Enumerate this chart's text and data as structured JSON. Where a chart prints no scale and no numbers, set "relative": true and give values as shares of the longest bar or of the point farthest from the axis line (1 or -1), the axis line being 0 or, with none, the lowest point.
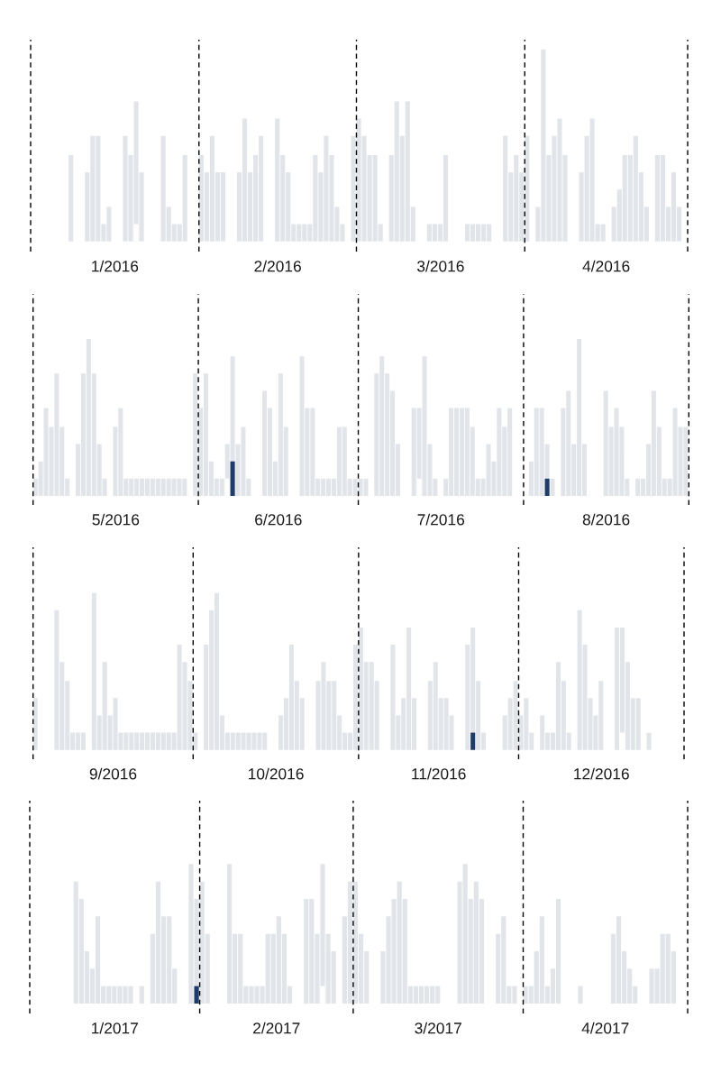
{
  "chart_data": [
    {
      "type": "bar",
      "relative": true,
      "xlim": [
        "2016-01-01",
        "2016-05-01"
      ],
      "xticks": [
        {
          "value": "2016-01-16T12:00",
          "label": "1/2016"
        },
        {
          "value": "2016-02-15T12:00",
          "label": "2/2016"
        },
        {
          "value": "2016-03-16T12:00",
          "label": "3/2016"
        },
        {
          "value": "2016-04-16",
          "label": "4/2016"
        }
      ],
      "ref_lines": [
        {
          "axis": "x",
          "value": "2016-01-01",
          "color": "#000000",
          "line_style": "dashed"
        },
        {
          "axis": "x",
          "value": "2016-02-01",
          "color": "#000000",
          "line_style": "dashed"
        },
        {
          "axis": "x",
          "value": "2016-03-01",
          "color": "#000000",
          "line_style": "dashed"
        },
        {
          "axis": "x",
          "value": "2016-04-01",
          "color": "#000000",
          "line_style": "dashed"
        },
        {
          "axis": "x",
          "value": "2016-05-01",
          "color": "#000000",
          "line_style": "dashed"
        }
      ],
      "series": [
        {
          "color": "#e1e4e9",
          "x": [
            "2016-01-08",
            "2016-01-11",
            "2016-01-12",
            "2016-01-13",
            "2016-01-14",
            "2016-01-15",
            "2016-01-18",
            "2016-01-19",
            "2016-01-20",
            "2016-01-21",
            "2016-01-25",
            "2016-01-26",
            "2016-01-27",
            "2016-01-28",
            "2016-01-29",
            "2016-02-01",
            "2016-02-02",
            "2016-02-03",
            "2016-02-04",
            "2016-02-05",
            "2016-02-08",
            "2016-02-09",
            "2016-02-10",
            "2016-02-11",
            "2016-02-12",
            "2016-02-15",
            "2016-02-16",
            "2016-02-17",
            "2016-02-18",
            "2016-02-19",
            "2016-02-20",
            "2016-02-21",
            "2016-02-22",
            "2016-02-23",
            "2016-02-24",
            "2016-02-25",
            "2016-02-26",
            "2016-02-27",
            "2016-02-29",
            "2016-03-01",
            "2016-03-02",
            "2016-03-03",
            "2016-03-04",
            "2016-03-05",
            "2016-03-07",
            "2016-03-08",
            "2016-03-09",
            "2016-03-10",
            "2016-03-11",
            "2016-03-14",
            "2016-03-15",
            "2016-03-16",
            "2016-03-17",
            "2016-03-21",
            "2016-03-22",
            "2016-03-23",
            "2016-03-24",
            "2016-03-25",
            "2016-03-28",
            "2016-03-29",
            "2016-03-30",
            "2016-03-31",
            "2016-04-01",
            "2016-04-03",
            "2016-04-04",
            "2016-04-05",
            "2016-04-06",
            "2016-04-07",
            "2016-04-08",
            "2016-04-11",
            "2016-04-12",
            "2016-04-13",
            "2016-04-14",
            "2016-04-15",
            "2016-04-17",
            "2016-04-18",
            "2016-04-19",
            "2016-04-20",
            "2016-04-21",
            "2016-04-22",
            "2016-04-23",
            "2016-04-25",
            "2016-04-26",
            "2016-04-27",
            "2016-04-28",
            "2016-04-29"
          ],
          "values": [
            0.45,
            0.36,
            0.55,
            0.55,
            0.09,
            0.18,
            0.55,
            0.45,
            0.73,
            0.36,
            0.55,
            0.18,
            0.09,
            0.09,
            0.45,
            0.45,
            0.36,
            0.55,
            0.36,
            0.36,
            0.36,
            0.64,
            0.36,
            0.45,
            0.55,
            0.64,
            0.45,
            0.36,
            0.09,
            0.09,
            0.09,
            0.09,
            0.45,
            0.36,
            0.55,
            0.45,
            0.18,
            0.09,
            0.55,
            0.64,
            0.55,
            0.45,
            0.45,
            0.09,
            0.45,
            0.73,
            0.55,
            0.73,
            0.18,
            0.09,
            0.09,
            0.09,
            0.45,
            0.09,
            0.09,
            0.09,
            0.09,
            0.09,
            0.55,
            0.36,
            0.45,
            0.36,
            0.55,
            0.18,
            1,
            0.45,
            0.55,
            0.64,
            0.45,
            0.36,
            0.55,
            0.64,
            0.09,
            0.09,
            0.18,
            0.27,
            0.45,
            0.45,
            0.55,
            0.36,
            0.18,
            0.45,
            0.45,
            0.18,
            0.36,
            0.18
          ]
        },
        {
          "color": "#ffffff",
          "x": [
            "2016-01-20"
          ],
          "values": [
            0.09
          ]
        }
      ]
    },
    {
      "type": "bar",
      "relative": true,
      "xlim": [
        "2016-05-01",
        "2016-09-01"
      ],
      "xticks": [
        {
          "value": "2016-05-16T12:00",
          "label": "5/2016"
        },
        {
          "value": "2016-06-16",
          "label": "6/2016"
        },
        {
          "value": "2016-07-16T12:00",
          "label": "7/2016"
        },
        {
          "value": "2016-08-16T12:00",
          "label": "8/2016"
        }
      ],
      "ref_lines": [
        {
          "axis": "x",
          "value": "2016-05-01",
          "color": "#000000",
          "line_style": "dashed"
        },
        {
          "axis": "x",
          "value": "2016-06-01",
          "color": "#000000",
          "line_style": "dashed"
        },
        {
          "axis": "x",
          "value": "2016-07-01",
          "color": "#000000",
          "line_style": "dashed"
        },
        {
          "axis": "x",
          "value": "2016-08-01",
          "color": "#000000",
          "line_style": "dashed"
        },
        {
          "axis": "x",
          "value": "2016-09-01",
          "color": "#000000",
          "line_style": "dashed"
        }
      ],
      "series": [
        {
          "color": "#e1e4e9",
          "x": [
            "2016-05-01",
            "2016-05-02",
            "2016-05-03",
            "2016-05-04",
            "2016-05-05",
            "2016-05-06",
            "2016-05-07",
            "2016-05-09",
            "2016-05-10",
            "2016-05-11",
            "2016-05-12",
            "2016-05-13",
            "2016-05-14",
            "2016-05-16",
            "2016-05-17",
            "2016-05-18",
            "2016-05-19",
            "2016-05-20",
            "2016-05-21",
            "2016-05-22",
            "2016-05-23",
            "2016-05-24",
            "2016-05-25",
            "2016-05-26",
            "2016-05-27",
            "2016-05-28",
            "2016-05-29",
            "2016-05-31",
            "2016-06-01",
            "2016-06-02",
            "2016-06-03",
            "2016-06-04",
            "2016-06-05",
            "2016-06-06",
            "2016-06-07",
            "2016-06-08",
            "2016-06-09",
            "2016-06-10",
            "2016-06-13",
            "2016-06-14",
            "2016-06-15",
            "2016-06-16",
            "2016-06-17",
            "2016-06-20",
            "2016-06-21",
            "2016-06-22",
            "2016-06-23",
            "2016-06-24",
            "2016-06-25",
            "2016-06-26",
            "2016-06-27",
            "2016-06-28",
            "2016-06-29",
            "2016-06-30",
            "2016-07-01",
            "2016-07-02",
            "2016-07-04",
            "2016-07-05",
            "2016-07-06",
            "2016-07-07",
            "2016-07-08",
            "2016-07-11",
            "2016-07-12",
            "2016-07-13",
            "2016-07-14",
            "2016-07-15",
            "2016-07-17",
            "2016-07-18",
            "2016-07-19",
            "2016-07-20",
            "2016-07-21",
            "2016-07-22",
            "2016-07-23",
            "2016-07-24",
            "2016-07-25",
            "2016-07-26",
            "2016-07-27",
            "2016-07-28",
            "2016-07-29",
            "2016-08-02",
            "2016-08-03",
            "2016-08-04",
            "2016-08-05",
            "2016-08-06",
            "2016-08-08",
            "2016-08-09",
            "2016-08-10",
            "2016-08-11",
            "2016-08-12",
            "2016-08-16",
            "2016-08-17",
            "2016-08-18",
            "2016-08-19",
            "2016-08-20",
            "2016-08-22",
            "2016-08-23",
            "2016-08-24",
            "2016-08-25",
            "2016-08-26",
            "2016-08-27",
            "2016-08-28",
            "2016-08-29",
            "2016-08-30",
            "2016-08-31"
          ],
          "values": [
            0.11,
            0.22,
            0.56,
            0.44,
            0.78,
            0.44,
            0.11,
            0.33,
            0.78,
            1,
            0.78,
            0.33,
            0.11,
            0.44,
            0.56,
            0.11,
            0.11,
            0.11,
            0.11,
            0.11,
            0.11,
            0.11,
            0.11,
            0.11,
            0.11,
            0.11,
            0.11,
            0.78,
            0.56,
            0.78,
            0.22,
            0.11,
            0.11,
            0.33,
            0.89,
            0.33,
            0.44,
            0.11,
            0.67,
            0.56,
            0.22,
            0.78,
            0.44,
            0.89,
            0.56,
            0.56,
            0.11,
            0.11,
            0.11,
            0.11,
            0.44,
            0.44,
            0.11,
            0.11,
            0.11,
            0.11,
            0.78,
            0.89,
            0.78,
            0.67,
            0.33,
            0.56,
            0.56,
            0.89,
            0.33,
            0.11,
            0.11,
            0.56,
            0.56,
            0.56,
            0.56,
            0.44,
            0.11,
            0.11,
            0.33,
            0.22,
            0.56,
            0.44,
            0.56,
            0.22,
            0.56,
            0.56,
            0.33,
            0.11,
            0.56,
            0.67,
            0.33,
            1,
            0.33,
            0.67,
            0.44,
            0.56,
            0.44,
            0.11,
            0.11,
            0.11,
            0.33,
            0.67,
            0.44,
            0.11,
            0.11,
            0.56,
            0.44,
            0.44
          ]
        },
        {
          "color": "#1d3c68",
          "x": [
            "2016-06-07",
            "2016-08-05"
          ],
          "values": [
            0.22,
            0.11
          ]
        },
        {
          "color": "#ffffff",
          "x": [
            "2016-06-06",
            "2016-07-12"
          ],
          "values": [
            0.11,
            0.11
          ]
        }
      ]
    },
    {
      "type": "bar",
      "relative": true,
      "xlim": [
        "2016-09-01",
        "2017-01-01"
      ],
      "xticks": [
        {
          "value": "2016-09-16",
          "label": "9/2016"
        },
        {
          "value": "2016-10-16T12:00",
          "label": "10/2016"
        },
        {
          "value": "2016-11-16",
          "label": "11/2016"
        },
        {
          "value": "2016-12-16T12:00",
          "label": "12/2016"
        }
      ],
      "ref_lines": [
        {
          "axis": "x",
          "value": "2016-09-01",
          "color": "#000000",
          "line_style": "dashed"
        },
        {
          "axis": "x",
          "value": "2016-10-01",
          "color": "#000000",
          "line_style": "dashed"
        },
        {
          "axis": "x",
          "value": "2016-11-01",
          "color": "#000000",
          "line_style": "dashed"
        },
        {
          "axis": "x",
          "value": "2016-12-01",
          "color": "#000000",
          "line_style": "dashed"
        },
        {
          "axis": "x",
          "value": "2017-01-01",
          "color": "#000000",
          "line_style": "dashed"
        }
      ],
      "series": [
        {
          "color": "#e1e4e9",
          "x": [
            "2016-09-01",
            "2016-09-05",
            "2016-09-06",
            "2016-09-07",
            "2016-09-08",
            "2016-09-09",
            "2016-09-10",
            "2016-09-12",
            "2016-09-13",
            "2016-09-14",
            "2016-09-15",
            "2016-09-16",
            "2016-09-17",
            "2016-09-18",
            "2016-09-19",
            "2016-09-20",
            "2016-09-21",
            "2016-09-22",
            "2016-09-23",
            "2016-09-24",
            "2016-09-25",
            "2016-09-26",
            "2016-09-27",
            "2016-09-28",
            "2016-09-29",
            "2016-09-30",
            "2016-10-01",
            "2016-10-03",
            "2016-10-04",
            "2016-10-05",
            "2016-10-06",
            "2016-10-07",
            "2016-10-08",
            "2016-10-09",
            "2016-10-10",
            "2016-10-11",
            "2016-10-12",
            "2016-10-13",
            "2016-10-14",
            "2016-10-17",
            "2016-10-18",
            "2016-10-19",
            "2016-10-20",
            "2016-10-21",
            "2016-10-24",
            "2016-10-25",
            "2016-10-26",
            "2016-10-27",
            "2016-10-28",
            "2016-10-29",
            "2016-10-30",
            "2016-10-31",
            "2016-11-01",
            "2016-11-02",
            "2016-11-03",
            "2016-11-04",
            "2016-11-07",
            "2016-11-08",
            "2016-11-09",
            "2016-11-10",
            "2016-11-11",
            "2016-11-14",
            "2016-11-15",
            "2016-11-16",
            "2016-11-17",
            "2016-11-18",
            "2016-11-21",
            "2016-11-22",
            "2016-11-23",
            "2016-11-24",
            "2016-11-28",
            "2016-11-29",
            "2016-11-30",
            "2016-12-01",
            "2016-12-02",
            "2016-12-03",
            "2016-12-05",
            "2016-12-06",
            "2016-12-07",
            "2016-12-08",
            "2016-12-09",
            "2016-12-10",
            "2016-12-12",
            "2016-12-13",
            "2016-12-14",
            "2016-12-15",
            "2016-12-16",
            "2016-12-19",
            "2016-12-20",
            "2016-12-21",
            "2016-12-22",
            "2016-12-23",
            "2016-12-25"
          ],
          "values": [
            0.33,
            0.89,
            0.56,
            0.44,
            0.11,
            0.11,
            0.11,
            1,
            0.22,
            0.56,
            0.22,
            0.33,
            0.11,
            0.11,
            0.11,
            0.11,
            0.11,
            0.11,
            0.11,
            0.11,
            0.11,
            0.11,
            0.11,
            0.67,
            0.56,
            0.44,
            0.11,
            0.67,
            0.89,
            1,
            0.22,
            0.11,
            0.11,
            0.11,
            0.11,
            0.11,
            0.11,
            0.11,
            0.11,
            0.22,
            0.33,
            0.67,
            0.44,
            0.33,
            0.44,
            0.56,
            0.44,
            0.44,
            0.22,
            0.11,
            0.11,
            0.67,
            0.78,
            0.56,
            0.56,
            0.44,
            0.67,
            0.22,
            0.33,
            0.78,
            0.33,
            0.44,
            0.56,
            0.33,
            0.33,
            0.22,
            0.67,
            0.78,
            0.44,
            0.11,
            0.22,
            0.33,
            0.44,
            0.22,
            0.33,
            0.11,
            0.22,
            0.11,
            0.11,
            0.56,
            0.44,
            0.11,
            0.89,
            0.67,
            0.33,
            0.22,
            0.44,
            0.78,
            0.78,
            0.56,
            0.33,
            0.33,
            0.11
          ]
        },
        {
          "color": "#1d3c68",
          "x": [
            "2016-11-22"
          ],
          "values": [
            0.11
          ]
        },
        {
          "color": "#ffffff",
          "x": [
            "2016-12-20"
          ],
          "values": [
            0.11
          ]
        }
      ]
    },
    {
      "type": "bar",
      "relative": true,
      "xlim": [
        "2017-01-01",
        "2017-05-01"
      ],
      "xticks": [
        {
          "value": "2017-01-16T12:00",
          "label": "1/2017"
        },
        {
          "value": "2017-02-15",
          "label": "2/2017"
        },
        {
          "value": "2017-03-16T12:00",
          "label": "3/2017"
        },
        {
          "value": "2017-04-16",
          "label": "4/2017"
        }
      ],
      "ref_lines": [
        {
          "axis": "x",
          "value": "2017-01-01",
          "color": "#000000",
          "line_style": "dashed"
        },
        {
          "axis": "x",
          "value": "2017-02-01",
          "color": "#000000",
          "line_style": "dashed"
        },
        {
          "axis": "x",
          "value": "2017-03-01",
          "color": "#000000",
          "line_style": "dashed"
        },
        {
          "axis": "x",
          "value": "2017-04-01",
          "color": "#000000",
          "line_style": "dashed"
        },
        {
          "axis": "x",
          "value": "2017-05-01",
          "color": "#000000",
          "line_style": "dashed"
        }
      ],
      "series": [
        {
          "color": "#e1e4e9",
          "x": [
            "2017-01-09",
            "2017-01-10",
            "2017-01-11",
            "2017-01-12",
            "2017-01-13",
            "2017-01-14",
            "2017-01-15",
            "2017-01-16",
            "2017-01-17",
            "2017-01-18",
            "2017-01-19",
            "2017-01-21",
            "2017-01-23",
            "2017-01-24",
            "2017-01-25",
            "2017-01-26",
            "2017-01-27",
            "2017-01-30",
            "2017-01-31",
            "2017-02-01",
            "2017-02-02",
            "2017-02-06",
            "2017-02-07",
            "2017-02-08",
            "2017-02-09",
            "2017-02-10",
            "2017-02-11",
            "2017-02-12",
            "2017-02-13",
            "2017-02-14",
            "2017-02-15",
            "2017-02-16",
            "2017-02-17",
            "2017-02-20",
            "2017-02-21",
            "2017-02-22",
            "2017-02-23",
            "2017-02-24",
            "2017-02-25",
            "2017-02-27",
            "2017-02-28",
            "2017-03-01",
            "2017-03-02",
            "2017-03-03",
            "2017-03-06",
            "2017-03-07",
            "2017-03-08",
            "2017-03-09",
            "2017-03-10",
            "2017-03-11",
            "2017-03-12",
            "2017-03-13",
            "2017-03-14",
            "2017-03-15",
            "2017-03-16",
            "2017-03-20",
            "2017-03-21",
            "2017-03-22",
            "2017-03-23",
            "2017-03-24",
            "2017-03-27",
            "2017-03-28",
            "2017-03-29",
            "2017-03-30",
            "2017-04-01",
            "2017-04-02",
            "2017-04-03",
            "2017-04-04",
            "2017-04-05",
            "2017-04-06",
            "2017-04-07",
            "2017-04-11",
            "2017-04-17",
            "2017-04-18",
            "2017-04-19",
            "2017-04-20",
            "2017-04-21",
            "2017-04-24",
            "2017-04-25",
            "2017-04-26",
            "2017-04-27",
            "2017-04-28"
          ],
          "values": [
            0.875,
            0.75,
            0.375,
            0.25,
            0.625,
            0.125,
            0.125,
            0.125,
            0.125,
            0.125,
            0.125,
            0.125,
            0.5,
            0.875,
            0.625,
            0.625,
            0.25,
            1,
            0.75,
            0.875,
            0.5,
            1,
            0.5,
            0.5,
            0.125,
            0.125,
            0.125,
            0.125,
            0.5,
            0.5,
            0.625,
            0.5,
            0.125,
            0.75,
            0.75,
            0.5,
            1,
            0.5,
            0.375,
            0.625,
            0.875,
            0.875,
            0.5,
            0.375,
            0.375,
            0.625,
            0.75,
            0.875,
            0.75,
            0.125,
            0.125,
            0.125,
            0.125,
            0.125,
            0.125,
            0.875,
            1,
            0.75,
            0.875,
            0.75,
            0.5,
            0.625,
            0.125,
            0.125,
            0.125,
            0.125,
            0.375,
            0.625,
            0.125,
            0.25,
            0.75,
            0.125,
            0.5,
            0.625,
            0.375,
            0.25,
            0.125,
            0.25,
            0.25,
            0.5,
            0.5,
            0.375
          ]
        },
        {
          "color": "#1d3c68",
          "x": [
            "2017-01-31"
          ],
          "values": [
            0.125
          ]
        },
        {
          "color": "#ffffff",
          "x": [
            "2017-02-23"
          ],
          "values": [
            0.125
          ]
        }
      ]
    }
  ]
}
